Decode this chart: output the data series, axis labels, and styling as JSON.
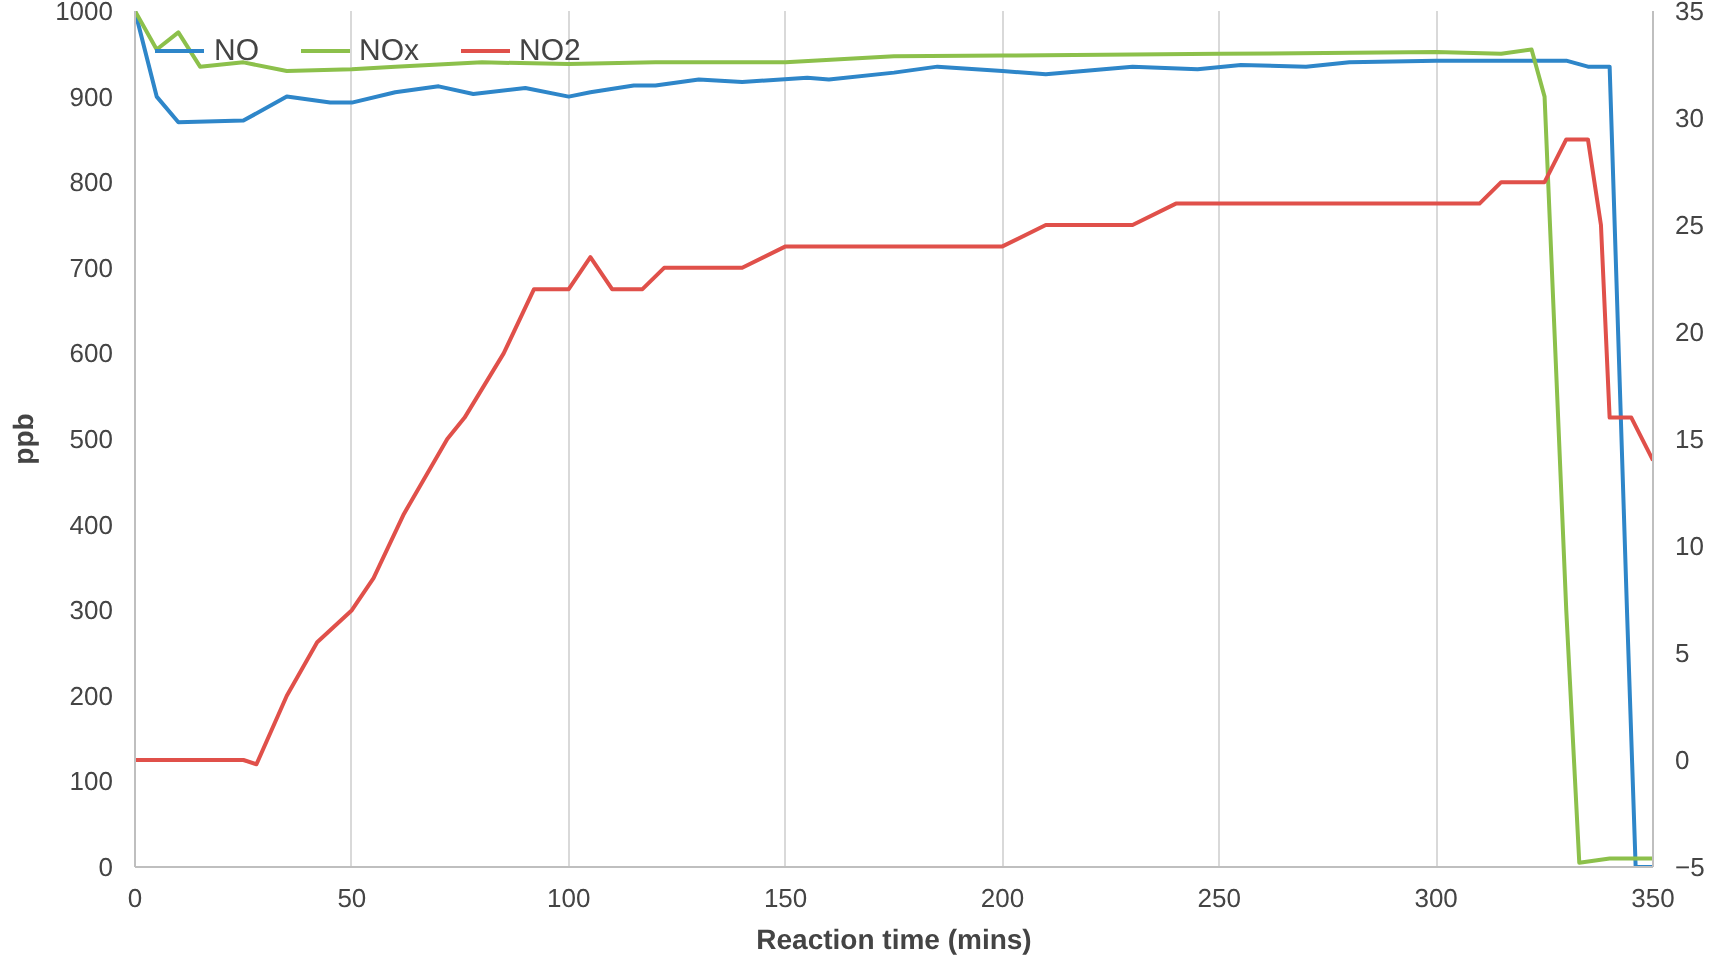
{
  "chart_data": {
    "type": "line",
    "xlabel": "Reaction time (mins)",
    "ylabel": "ppb",
    "xlim": [
      0,
      350
    ],
    "xticks": [
      0,
      50,
      100,
      150,
      200,
      250,
      300,
      350
    ],
    "ylim": [
      0,
      1000
    ],
    "yticks": [
      0,
      100,
      200,
      300,
      400,
      500,
      600,
      700,
      800,
      900,
      1000
    ],
    "y2lim": [
      -5,
      35
    ],
    "y2ticks": [
      -5,
      0,
      5,
      10,
      15,
      20,
      25,
      30,
      35
    ],
    "grid": "x",
    "legend": "top left",
    "marker": "none",
    "line_style": "solid",
    "series": [
      {
        "name": "NO",
        "color": "#2e86c9",
        "x": [
          0,
          5,
          10,
          25,
          35,
          45,
          50,
          60,
          70,
          78,
          90,
          100,
          105,
          115,
          120,
          130,
          140,
          155,
          160,
          175,
          185,
          200,
          210,
          230,
          245,
          255,
          270,
          280,
          300,
          330,
          335,
          340,
          344,
          346,
          350
        ],
        "values": [
          1000,
          900,
          870,
          872,
          900,
          893,
          893,
          905,
          912,
          903,
          910,
          900,
          905,
          913,
          913,
          920,
          917,
          922,
          920,
          928,
          935,
          930,
          926,
          935,
          932,
          937,
          935,
          940,
          942,
          942,
          935,
          935,
          300,
          0,
          0
        ]
      },
      {
        "name": "NOx",
        "color": "#8cc04b",
        "x": [
          0,
          5,
          10,
          15,
          25,
          35,
          50,
          60,
          80,
          100,
          120,
          150,
          175,
          200,
          250,
          300,
          315,
          322,
          325,
          330,
          333,
          340,
          350
        ],
        "values": [
          1000,
          955,
          975,
          935,
          940,
          930,
          932,
          935,
          940,
          938,
          940,
          940,
          947,
          948,
          950,
          952,
          950,
          955,
          900,
          300,
          5,
          10,
          10
        ]
      },
      {
        "name": "NO2",
        "color": "#e0504a",
        "axis": "y2",
        "x": [
          0,
          25,
          28,
          35,
          42,
          50,
          55,
          62,
          72,
          76,
          85,
          92,
          100,
          105,
          110,
          117,
          122,
          140,
          150,
          200,
          210,
          230,
          240,
          310,
          315,
          325,
          330,
          335,
          338,
          340,
          345,
          350
        ],
        "values": [
          0,
          0,
          -0.2,
          3,
          5.5,
          7,
          8.5,
          11.5,
          15,
          16,
          19,
          22,
          22,
          23.5,
          22,
          22,
          23,
          23,
          24,
          24,
          25,
          25,
          26,
          26,
          27,
          27,
          29,
          29,
          25,
          16,
          16,
          14
        ]
      }
    ]
  }
}
